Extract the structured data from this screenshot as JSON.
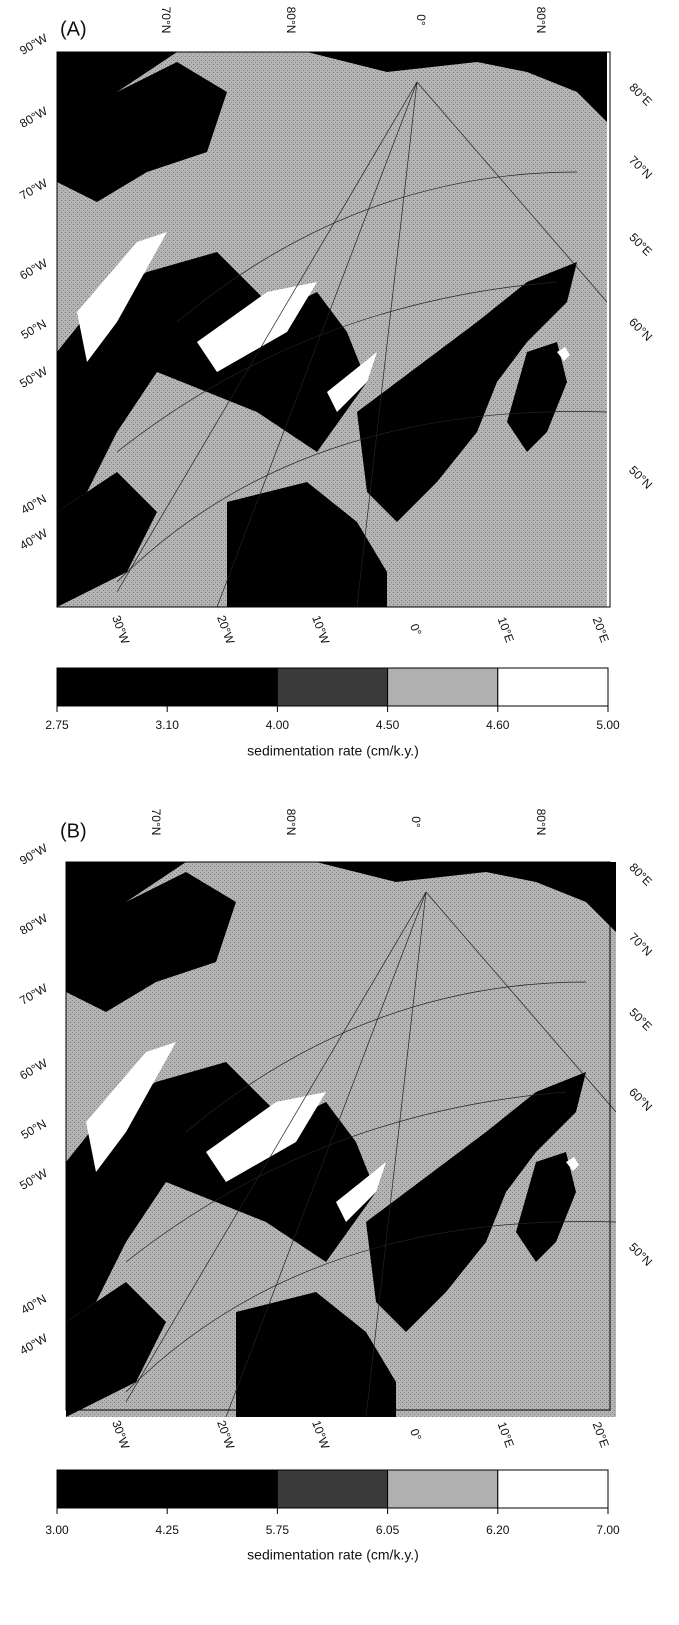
{
  "panels": [
    {
      "label": "(A)",
      "top_labels": [
        "70°N",
        "80°N",
        "0°",
        "80°N"
      ],
      "left_labels": [
        "90°W",
        "80°W",
        "70°W",
        "60°W",
        "50°N",
        "50°W",
        "40°N",
        "40°W"
      ],
      "right_labels": [
        "80°E",
        "70°N",
        "50°E",
        "60°N",
        "50°N"
      ],
      "bottom_labels": [
        "30°W",
        "20°W",
        "10°W",
        "0°",
        "10°E",
        "20°E"
      ],
      "colorbar": {
        "ticks": [
          2.75,
          {
            "value": 3.1,
            "label": "3.10"
          },
          {
            "value": 4,
            "label": "4.00"
          },
          {
            "value": 4.5,
            "label": "4.50"
          },
          {
            "value": 4.6,
            "label": "4.60"
          },
          {
            "value": 5,
            "label": "5.00"
          }
        ],
        "colors": [
          "#000000",
          "#000000",
          "#3a3a3a",
          "#b0b0b0",
          "#ffffff"
        ],
        "label": "sedimentation rate (cm/k.y.)"
      }
    },
    {
      "label": "(B)",
      "top_labels": [
        "70°N",
        "80°N",
        "0°",
        "80°N"
      ],
      "left_labels": [
        "90°W",
        "80°W",
        "70°W",
        "60°W",
        "50°N",
        "50°W",
        "40°N",
        "40°W"
      ],
      "right_labels": [
        "80°E",
        "70°N",
        "50°E",
        "60°N",
        "50°N"
      ],
      "bottom_labels": [
        "30°W",
        "20°W",
        "10°W",
        "0°",
        "10°E",
        "20°E"
      ],
      "colorbar": {
        "ticks": [
          {
            "value": 3,
            "label": "3.00"
          },
          {
            "value": 4.25,
            "label": "4.25"
          },
          {
            "value": 5.75,
            "label": "5.75"
          },
          {
            "value": 6.05,
            "label": "6.05"
          },
          {
            "value": 6.2,
            "label": "6.20"
          },
          {
            "value": 7,
            "label": "7.00"
          }
        ],
        "colors": [
          "#000000",
          "#000000",
          "#3a3a3a",
          "#b0b0b0",
          "#ffffff"
        ],
        "label": "sedimentation rate (cm/k.y.)"
      }
    }
  ]
}
